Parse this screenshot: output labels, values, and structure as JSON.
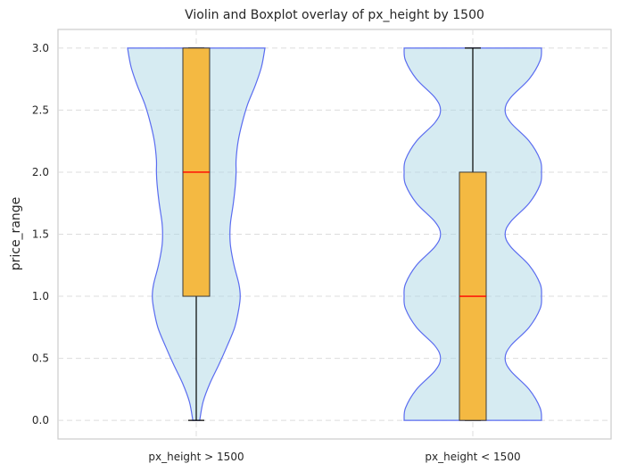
{
  "chart_data": {
    "type": "violin",
    "title": "Violin and Boxplot overlay of px_height by 1500",
    "xlabel": "",
    "ylabel": "price_range",
    "ylim": [
      -0.15,
      3.15
    ],
    "yticks": [
      "0.0",
      "0.5",
      "1.0",
      "1.5",
      "2.0",
      "2.5",
      "3.0"
    ],
    "yticks_values": [
      0,
      0.5,
      1.0,
      1.5,
      2.0,
      2.5,
      3.0
    ],
    "grid": true,
    "colors": {
      "violin_fill": "#add8e6",
      "violin_edge": "#5a6cf0",
      "box_fill": "#f4b942",
      "median": "#ff0000"
    },
    "categories": [
      "px_height > 1500",
      "px_height < 1500"
    ],
    "series": [
      {
        "box": {
          "min": 0,
          "q1": 1.0,
          "median": 2.0,
          "q3": 3.0,
          "max": 3.0
        },
        "violin_profile": [
          [
            0.0,
            0.05
          ],
          [
            0.15,
            0.1
          ],
          [
            0.3,
            0.2
          ],
          [
            0.45,
            0.33
          ],
          [
            0.6,
            0.45
          ],
          [
            0.75,
            0.56
          ],
          [
            0.9,
            0.62
          ],
          [
            1.0,
            0.64
          ],
          [
            1.1,
            0.62
          ],
          [
            1.25,
            0.55
          ],
          [
            1.4,
            0.5
          ],
          [
            1.5,
            0.49
          ],
          [
            1.6,
            0.5
          ],
          [
            1.75,
            0.54
          ],
          [
            1.9,
            0.57
          ],
          [
            2.0,
            0.58
          ],
          [
            2.1,
            0.58
          ],
          [
            2.25,
            0.61
          ],
          [
            2.4,
            0.67
          ],
          [
            2.55,
            0.75
          ],
          [
            2.7,
            0.86
          ],
          [
            2.85,
            0.95
          ],
          [
            3.0,
            1.0
          ]
        ]
      },
      {
        "box": {
          "min": 0,
          "q1": 0,
          "median": 1.0,
          "q3": 2.0,
          "max": 3.0
        },
        "violin_profile": [
          [
            0.0,
            1.0
          ],
          [
            0.1,
            0.98
          ],
          [
            0.25,
            0.82
          ],
          [
            0.4,
            0.55
          ],
          [
            0.5,
            0.47
          ],
          [
            0.6,
            0.55
          ],
          [
            0.75,
            0.82
          ],
          [
            0.9,
            0.98
          ],
          [
            1.0,
            1.0
          ],
          [
            1.1,
            0.98
          ],
          [
            1.25,
            0.82
          ],
          [
            1.4,
            0.55
          ],
          [
            1.5,
            0.47
          ],
          [
            1.6,
            0.55
          ],
          [
            1.75,
            0.82
          ],
          [
            1.9,
            0.98
          ],
          [
            2.0,
            1.0
          ],
          [
            2.1,
            0.98
          ],
          [
            2.25,
            0.82
          ],
          [
            2.4,
            0.55
          ],
          [
            2.5,
            0.47
          ],
          [
            2.6,
            0.55
          ],
          [
            2.75,
            0.82
          ],
          [
            2.9,
            0.98
          ],
          [
            3.0,
            1.0
          ]
        ]
      }
    ]
  }
}
